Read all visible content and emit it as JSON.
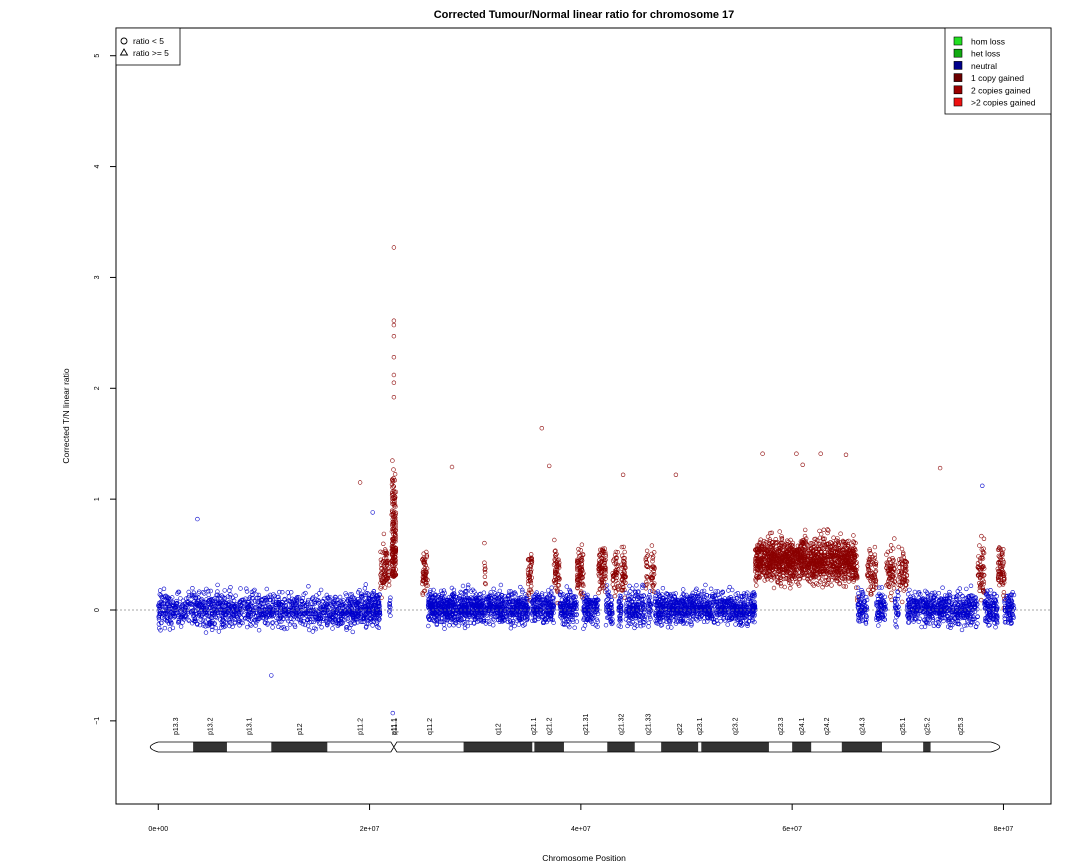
{
  "chart_data": {
    "type": "scatter",
    "title": "Corrected Tumour/Normal linear ratio for chromosome  17",
    "xlabel": "Chromosome Position",
    "ylabel": "Corrected T/N linear ratio",
    "xlim": [
      -4000000,
      84500000
    ],
    "ylim": [
      -1.75,
      5.25
    ],
    "x_ticks": [
      0,
      20000000,
      40000000,
      60000000,
      80000000
    ],
    "x_tick_labels": [
      "0e+00",
      "2e+07",
      "4e+07",
      "6e+07",
      "8e+07"
    ],
    "y_ticks": [
      -1,
      0,
      1,
      2,
      3,
      4,
      5
    ],
    "y_tick_labels": [
      "−1",
      "0",
      "1",
      "2",
      "3",
      "4",
      "5"
    ],
    "reference_line_y": 0,
    "grid": false,
    "shape_legend": {
      "position": "top-left",
      "entries": [
        {
          "symbol": "circle",
          "label": "ratio < 5"
        },
        {
          "symbol": "triangle",
          "label": "ratio >= 5"
        }
      ]
    },
    "color_legend": {
      "position": "top-right",
      "entries": [
        {
          "label": "hom loss",
          "color": "#22e022"
        },
        {
          "label": "het loss",
          "color": "#11aa11"
        },
        {
          "label": "neutral",
          "color": "#00008b"
        },
        {
          "label": "1 copy gained",
          "color": "#6b0000"
        },
        {
          "label": "2 copies gained",
          "color": "#9b0000"
        },
        {
          "label": ">2 copies gained",
          "color": "#ee1111"
        }
      ]
    },
    "point_colors": {
      "neutral": "#0000cc",
      "gained": "#8b0000"
    },
    "segments": [
      {
        "x": [
          0,
          19500000
        ],
        "state": "neutral",
        "mean": 0.0,
        "spread": 0.28,
        "count": 1300
      },
      {
        "x": [
          19500000,
          22000000
        ],
        "state": "mixed",
        "mean": 0.1,
        "spread": 0.35,
        "count": 260
      },
      {
        "x": [
          22100000,
          22500000
        ],
        "state": "gained",
        "mean": 0.6,
        "spread": 0.9,
        "count": 180
      },
      {
        "x": [
          25000000,
          31000000
        ],
        "state": "mixed",
        "mean": 0.2,
        "spread": 0.35,
        "count": 700
      },
      {
        "x": [
          31000000,
          35000000
        ],
        "state": "neutral",
        "mean": 0.02,
        "spread": 0.25,
        "count": 400
      },
      {
        "x": [
          35000000,
          50000000
        ],
        "state": "mixed",
        "mean": 0.15,
        "spread": 0.32,
        "count": 1500
      },
      {
        "x": [
          50000000,
          55000000
        ],
        "state": "neutral",
        "mean": 0.02,
        "spread": 0.25,
        "count": 450
      },
      {
        "x": [
          55000000,
          56500000
        ],
        "state": "mixed",
        "mean": 0.1,
        "spread": 0.3,
        "count": 150
      },
      {
        "x": [
          56500000,
          66000000
        ],
        "state": "gained",
        "mean": 0.45,
        "spread": 0.35,
        "count": 1400
      },
      {
        "x": [
          66000000,
          81000000
        ],
        "state": "mixed",
        "mean": 0.15,
        "spread": 0.32,
        "count": 1300
      }
    ],
    "outliers": [
      {
        "x": 22300000,
        "y": 3.27,
        "state": "gained"
      },
      {
        "x": 22300000,
        "y": 2.61,
        "state": "gained"
      },
      {
        "x": 22300000,
        "y": 2.57,
        "state": "gained"
      },
      {
        "x": 22300000,
        "y": 2.47,
        "state": "gained"
      },
      {
        "x": 22300000,
        "y": 2.28,
        "state": "gained"
      },
      {
        "x": 22300000,
        "y": 2.12,
        "state": "gained"
      },
      {
        "x": 22300000,
        "y": 2.05,
        "state": "gained"
      },
      {
        "x": 22300000,
        "y": 1.92,
        "state": "gained"
      },
      {
        "x": 36300000,
        "y": 1.64,
        "state": "gained"
      },
      {
        "x": 37000000,
        "y": 1.3,
        "state": "gained"
      },
      {
        "x": 19100000,
        "y": 1.15,
        "state": "gained"
      },
      {
        "x": 27800000,
        "y": 1.29,
        "state": "gained"
      },
      {
        "x": 57200000,
        "y": 1.41,
        "state": "gained"
      },
      {
        "x": 60400000,
        "y": 1.41,
        "state": "gained"
      },
      {
        "x": 62700000,
        "y": 1.41,
        "state": "gained"
      },
      {
        "x": 65100000,
        "y": 1.4,
        "state": "gained"
      },
      {
        "x": 61000000,
        "y": 1.31,
        "state": "gained"
      },
      {
        "x": 74000000,
        "y": 1.28,
        "state": "gained"
      },
      {
        "x": 49000000,
        "y": 1.22,
        "state": "gained"
      },
      {
        "x": 44000000,
        "y": 1.22,
        "state": "gained"
      },
      {
        "x": 10700000,
        "y": -0.59,
        "state": "neutral"
      },
      {
        "x": 22200000,
        "y": -0.93,
        "state": "neutral"
      },
      {
        "x": 3700000,
        "y": 0.82,
        "state": "neutral"
      },
      {
        "x": 20300000,
        "y": 0.88,
        "state": "neutral"
      },
      {
        "x": 78000000,
        "y": 1.12,
        "state": "neutral"
      }
    ],
    "ideogram": {
      "centromere": 22300000,
      "bands": [
        {
          "name": "p13.3",
          "start": 0,
          "end": 3300000,
          "stain": "gneg"
        },
        {
          "name": "p13.2",
          "start": 3300000,
          "end": 6500000,
          "stain": "gpos"
        },
        {
          "name": "p13.1",
          "start": 6500000,
          "end": 10700000,
          "stain": "gneg"
        },
        {
          "name": "p12",
          "start": 10700000,
          "end": 16000000,
          "stain": "gpos"
        },
        {
          "name": "p11.2",
          "start": 16000000,
          "end": 22200000,
          "stain": "gneg"
        },
        {
          "name": "p11.1",
          "start": 22200000,
          "end": 22300000,
          "stain": "acen"
        },
        {
          "name": "q11.1",
          "start": 22300000,
          "end": 22400000,
          "stain": "acen"
        },
        {
          "name": "q11.2",
          "start": 22400000,
          "end": 28900000,
          "stain": "gneg"
        },
        {
          "name": "q12",
          "start": 28900000,
          "end": 35400000,
          "stain": "gpos"
        },
        {
          "name": "q21.1",
          "start": 35400000,
          "end": 35600000,
          "stain": "gneg"
        },
        {
          "name": "q21.2",
          "start": 35600000,
          "end": 38400000,
          "stain": "gpos"
        },
        {
          "name": "q21.31",
          "start": 38400000,
          "end": 42500000,
          "stain": "gneg"
        },
        {
          "name": "q21.32",
          "start": 42500000,
          "end": 45100000,
          "stain": "gpos"
        },
        {
          "name": "q21.33",
          "start": 45100000,
          "end": 47600000,
          "stain": "gneg"
        },
        {
          "name": "q22",
          "start": 47600000,
          "end": 51100000,
          "stain": "gpos"
        },
        {
          "name": "q23.1",
          "start": 51100000,
          "end": 51400000,
          "stain": "gneg"
        },
        {
          "name": "q23.2",
          "start": 51400000,
          "end": 57800000,
          "stain": "gpos"
        },
        {
          "name": "q23.3",
          "start": 57800000,
          "end": 60000000,
          "stain": "gneg"
        },
        {
          "name": "q24.1",
          "start": 60000000,
          "end": 61800000,
          "stain": "gpos"
        },
        {
          "name": "q24.2",
          "start": 61800000,
          "end": 64700000,
          "stain": "gneg"
        },
        {
          "name": "q24.3",
          "start": 64700000,
          "end": 68500000,
          "stain": "gpos"
        },
        {
          "name": "q25.1",
          "start": 68500000,
          "end": 72400000,
          "stain": "gneg"
        },
        {
          "name": "q25.2",
          "start": 72400000,
          "end": 73100000,
          "stain": "gpos"
        },
        {
          "name": "q25.3",
          "start": 73100000,
          "end": 78800000,
          "stain": "gneg"
        }
      ],
      "end": 78800000
    }
  }
}
